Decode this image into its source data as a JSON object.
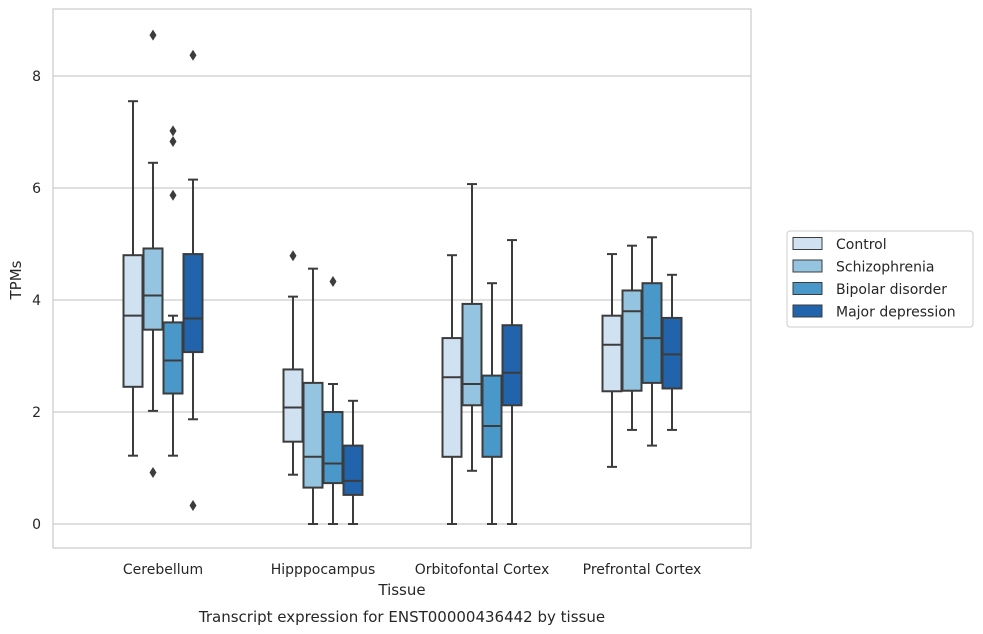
{
  "chart_data": {
    "type": "box",
    "xlabel": "Tissue",
    "ylabel": "TPMs",
    "caption": "Transcript expression for ENST00000436442 by tissue",
    "ylim": [
      -0.4,
      9.2
    ],
    "yticks": [
      "0",
      "2",
      "4",
      "6",
      "8"
    ],
    "grid": true,
    "legend_position": "right",
    "categories": [
      "Cerebellum",
      "Hipppocampus",
      "Orbitofontal Cortex",
      "Prefrontal Cortex"
    ],
    "series": [
      {
        "name": "Control",
        "color": "#d0e1f2",
        "boxes": [
          {
            "whisker_low": 1.22,
            "q1": 2.45,
            "median": 3.72,
            "q3": 4.8,
            "whisker_high": 7.55,
            "outliers": []
          },
          {
            "whisker_low": 0.88,
            "q1": 1.47,
            "median": 2.08,
            "q3": 2.76,
            "whisker_high": 4.06,
            "outliers": [
              4.79
            ]
          },
          {
            "whisker_low": 0.0,
            "q1": 1.2,
            "median": 2.62,
            "q3": 3.32,
            "whisker_high": 4.8,
            "outliers": []
          },
          {
            "whisker_low": 1.02,
            "q1": 2.37,
            "median": 3.2,
            "q3": 3.72,
            "whisker_high": 4.82,
            "outliers": []
          }
        ]
      },
      {
        "name": "Schizophrenia",
        "color": "#94c4df",
        "boxes": [
          {
            "whisker_low": 2.02,
            "q1": 3.47,
            "median": 4.08,
            "q3": 4.92,
            "whisker_high": 6.45,
            "outliers": [
              0.92,
              8.73
            ]
          },
          {
            "whisker_low": 0.0,
            "q1": 0.65,
            "median": 1.2,
            "q3": 2.52,
            "whisker_high": 4.56,
            "outliers": []
          },
          {
            "whisker_low": 0.95,
            "q1": 2.12,
            "median": 2.5,
            "q3": 3.93,
            "whisker_high": 6.07,
            "outliers": []
          },
          {
            "whisker_low": 1.68,
            "q1": 2.38,
            "median": 3.8,
            "q3": 4.17,
            "whisker_high": 4.97,
            "outliers": []
          }
        ]
      },
      {
        "name": "Bipolar disorder",
        "color": "#4a98c9",
        "boxes": [
          {
            "whisker_low": 1.22,
            "q1": 2.33,
            "median": 2.92,
            "q3": 3.6,
            "whisker_high": 3.72,
            "outliers": [
              5.87,
              6.83,
              7.02
            ]
          },
          {
            "whisker_low": 0.0,
            "q1": 0.73,
            "median": 1.08,
            "q3": 2.0,
            "whisker_high": 2.5,
            "outliers": [
              4.33
            ]
          },
          {
            "whisker_low": 0.0,
            "q1": 1.2,
            "median": 1.75,
            "q3": 2.65,
            "whisker_high": 4.3,
            "outliers": []
          },
          {
            "whisker_low": 1.4,
            "q1": 2.52,
            "median": 3.32,
            "q3": 4.3,
            "whisker_high": 5.12,
            "outliers": []
          }
        ]
      },
      {
        "name": "Major depression",
        "color": "#2164ab",
        "boxes": [
          {
            "whisker_low": 1.87,
            "q1": 3.07,
            "median": 3.67,
            "q3": 4.82,
            "whisker_high": 6.15,
            "outliers": [
              0.33,
              8.37
            ]
          },
          {
            "whisker_low": 0.0,
            "q1": 0.52,
            "median": 0.77,
            "q3": 1.4,
            "whisker_high": 2.2,
            "outliers": []
          },
          {
            "whisker_low": 0.0,
            "q1": 2.12,
            "median": 2.7,
            "q3": 3.55,
            "whisker_high": 5.07,
            "outliers": []
          },
          {
            "whisker_low": 1.68,
            "q1": 2.42,
            "median": 3.03,
            "q3": 3.68,
            "whisker_high": 4.45,
            "outliers": []
          }
        ]
      }
    ]
  }
}
